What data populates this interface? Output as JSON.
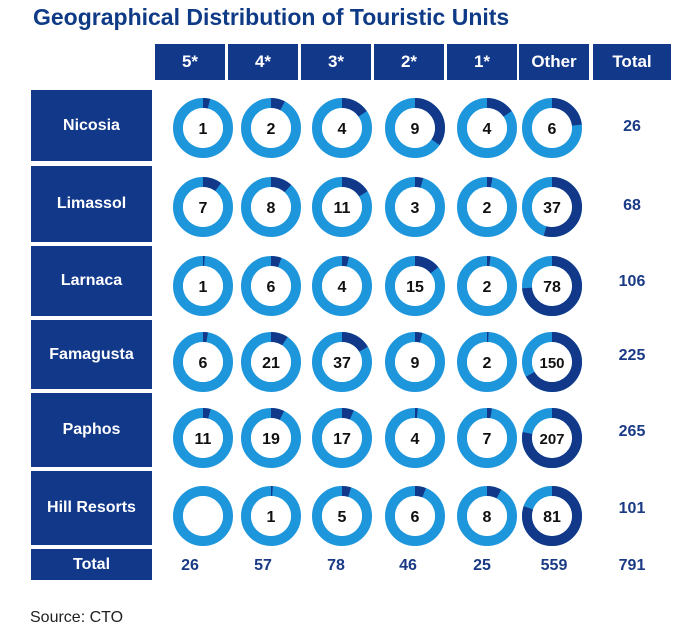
{
  "title": "Geographical Distribution of Touristic Units",
  "source": "Source: CTO",
  "colors": {
    "header_bg": "#12388a",
    "ring_light": "#1e96dc",
    "ring_dark": "#12388a",
    "text_dark": "#1a3a86"
  },
  "chart_data": {
    "type": "table",
    "title": "Geographical Distribution of Touristic Units",
    "columns": [
      "5*",
      "4*",
      "3*",
      "2*",
      "1*",
      "Other",
      "Total"
    ],
    "rows": [
      {
        "label": "Nicosia",
        "values": [
          1,
          2,
          4,
          9,
          4,
          6
        ],
        "total": "26"
      },
      {
        "label": "Limassol",
        "values": [
          7,
          8,
          11,
          3,
          2,
          37
        ],
        "total": "68"
      },
      {
        "label": "Larnaca",
        "values": [
          1,
          6,
          4,
          15,
          2,
          78
        ],
        "total": "106"
      },
      {
        "label": "Famagusta",
        "values": [
          6,
          21,
          37,
          9,
          2,
          150
        ],
        "total": "225"
      },
      {
        "label": "Paphos",
        "values": [
          11,
          19,
          17,
          4,
          7,
          207
        ],
        "total": "265"
      },
      {
        "label": "Hill Resorts",
        "values": [
          null,
          1,
          5,
          6,
          8,
          81
        ],
        "total": "101"
      }
    ],
    "column_totals": {
      "label": "Total",
      "values": [
        "26",
        "57",
        "78",
        "46",
        "25",
        "559",
        "791"
      ]
    }
  }
}
